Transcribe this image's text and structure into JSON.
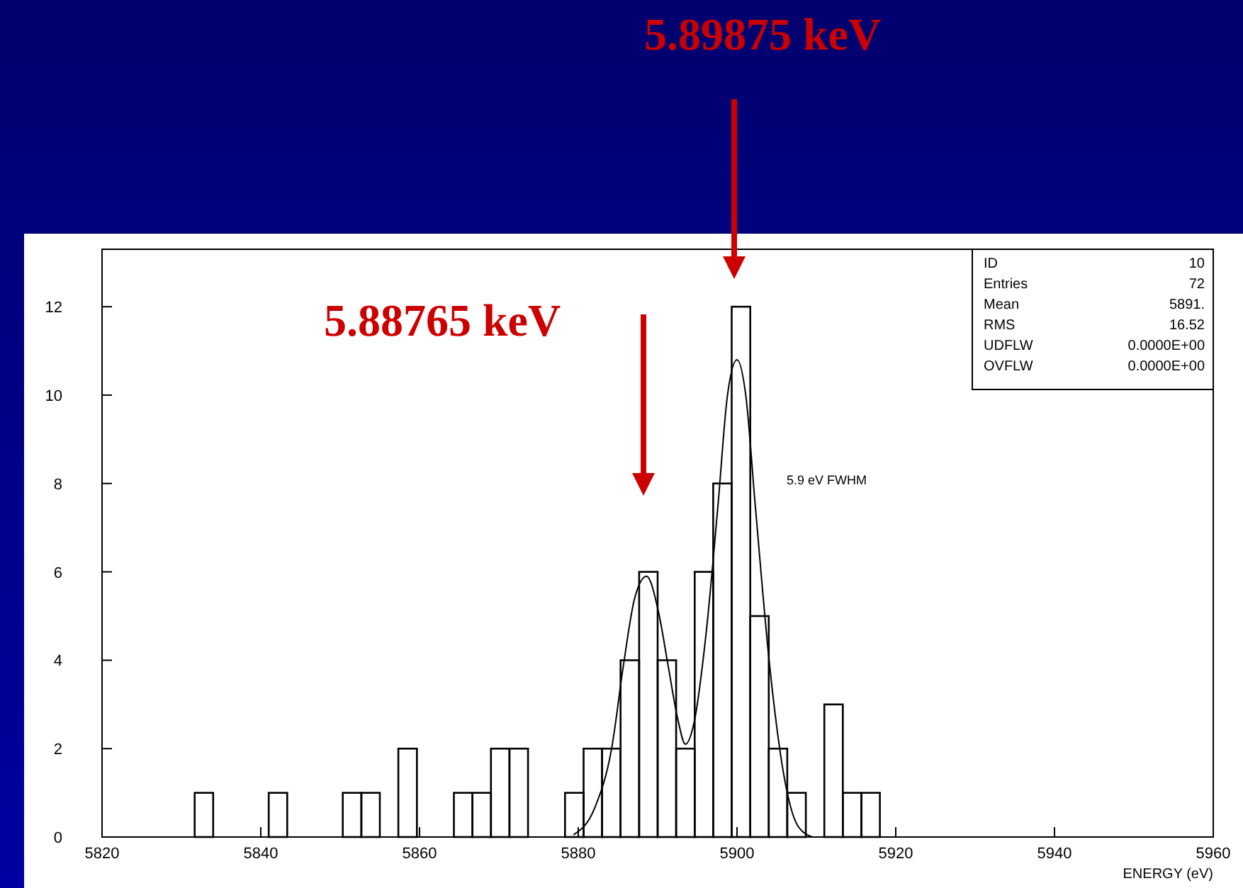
{
  "chart_data": {
    "type": "histogram",
    "xlabel": "ENERGY (eV)",
    "xlim": [
      5820,
      5960
    ],
    "xticks": [
      5820,
      5840,
      5860,
      5880,
      5900,
      5920,
      5940,
      5960
    ],
    "ylim": [
      0,
      13.3
    ],
    "yticks": [
      0,
      2,
      4,
      6,
      8,
      10,
      12
    ],
    "grid": false,
    "bins": [
      5820,
      5822.33,
      5824.67,
      5827,
      5829.33,
      5831.67,
      5834,
      5836.33,
      5838.67,
      5841,
      5843.33,
      5845.67,
      5848,
      5850.33,
      5852.67,
      5855,
      5857.33,
      5859.67,
      5862,
      5864.33,
      5866.67,
      5869,
      5871.33,
      5873.67,
      5876,
      5878.33,
      5880.67,
      5883,
      5885.33,
      5887.67,
      5890,
      5892.33,
      5894.67,
      5897,
      5899.33,
      5901.67,
      5904,
      5906.33,
      5908.67,
      5911,
      5913.33,
      5915.67,
      5918,
      5920.33,
      5922.67,
      5925,
      5927.33,
      5929.67,
      5932,
      5934.33,
      5936.67,
      5939,
      5941.33,
      5943.67,
      5946,
      5948.33,
      5950.67,
      5953,
      5955.33,
      5957.67,
      5960
    ],
    "series": [
      {
        "color": "#000000",
        "values": [
          0,
          0,
          0,
          0,
          0,
          1,
          0,
          0,
          0,
          1,
          0,
          0,
          0,
          1,
          1,
          0,
          2,
          0,
          0,
          1,
          1,
          2,
          2,
          0,
          0,
          1,
          2,
          2,
          4,
          6,
          4,
          2,
          6,
          8,
          12,
          5,
          2,
          1,
          0,
          3,
          1,
          1,
          0,
          0,
          0,
          0,
          0,
          0,
          0,
          0,
          0,
          0,
          0,
          0,
          0,
          0,
          0,
          0,
          0,
          0
        ]
      },
      {
        "type": "line",
        "color": "#000000",
        "marker": "none",
        "x": [
          5879.4,
          5882.1,
          5884.2,
          5885.7,
          5887.1,
          5888.6,
          5890.1,
          5891.3,
          5892.5,
          5893.5,
          5894.6,
          5896.1,
          5897.6,
          5898.8,
          5900,
          5901.1,
          5902.3,
          5904.1,
          5905.9,
          5907.7,
          5909.5
        ],
        "values": [
          0.05,
          0.67,
          2,
          3.9,
          5.4,
          5.9,
          5.1,
          3.9,
          2.7,
          2.1,
          2.6,
          4.6,
          7.5,
          10,
          10.8,
          10,
          7.5,
          3.9,
          1.4,
          0.24,
          0
        ]
      }
    ],
    "annotations": [
      "5.88765 keV",
      "5.89875 keV",
      "5.9 eV FWHM",
      "ID",
      "10",
      "Entries",
      "72",
      "Mean",
      "5891.",
      "RMS",
      "16.52",
      "UDFLW",
      "0.0000E+00",
      "OVFLW",
      "0.0000E+00"
    ]
  }
}
